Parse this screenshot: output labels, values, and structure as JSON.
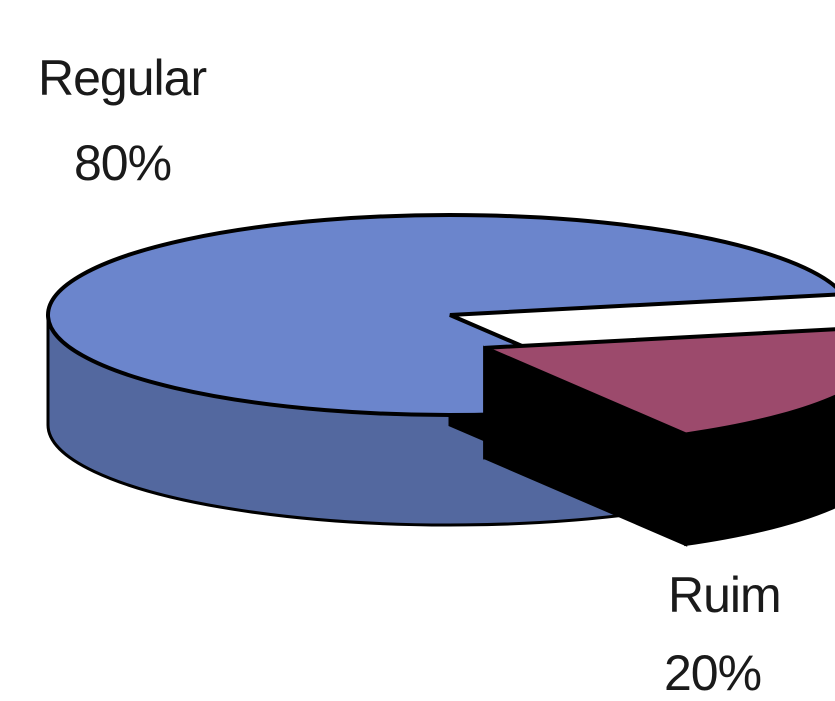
{
  "chart_data": {
    "type": "pie",
    "style": "3d-exploded",
    "slices": [
      {
        "name": "Regular",
        "value": 80,
        "value_label": "80%",
        "color": "#6b85cc"
      },
      {
        "name": "Ruim",
        "value": 20,
        "value_label": "20%",
        "color": "#9c4a6c"
      }
    ],
    "exploded": [
      "Ruim"
    ],
    "legend": "none"
  }
}
